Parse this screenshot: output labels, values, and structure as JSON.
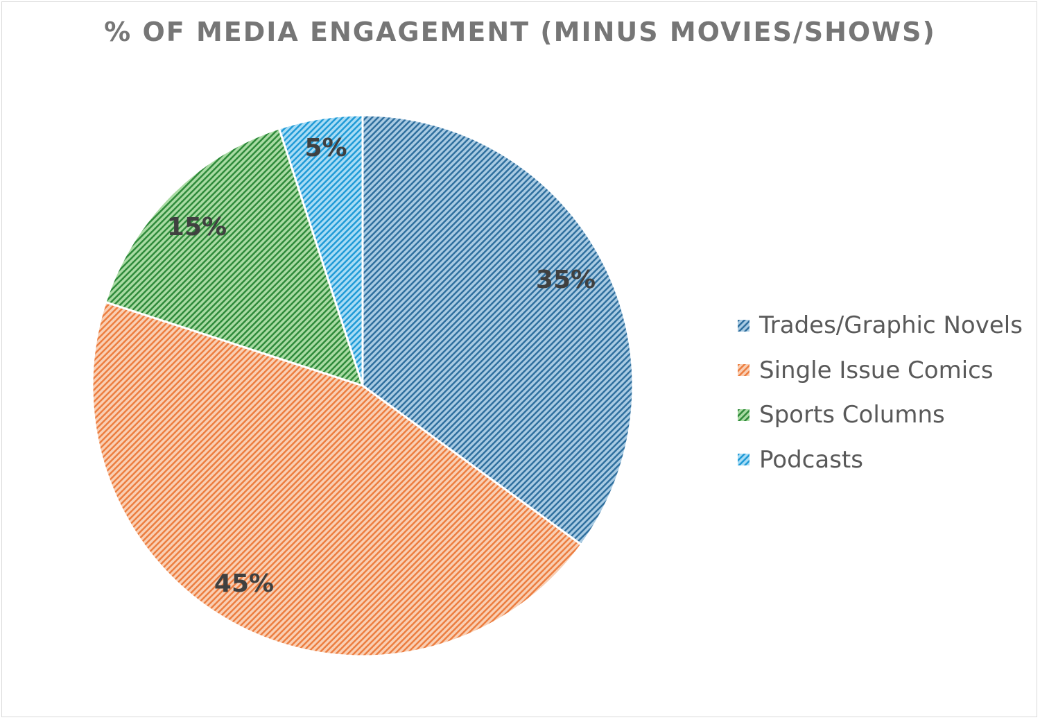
{
  "chart_data": {
    "type": "pie",
    "title": "% OF MEDIA ENGAGEMENT (MINUS MOVIES/SHOWS)",
    "categories": [
      "Trades/Graphic Novels",
      "Single Issue Comics",
      "Sports Columns",
      "Podcasts"
    ],
    "values": [
      35,
      45,
      15,
      5
    ],
    "data_labels": [
      "35%",
      "45%",
      "15%",
      "5%"
    ],
    "legend_position": "right",
    "colors": [
      {
        "fg": "#2f6f9e",
        "bg": "#a9cbe3"
      },
      {
        "fg": "#ec7d3f",
        "bg": "#f9cfb4"
      },
      {
        "fg": "#2e8a3a",
        "bg": "#a9dba3"
      },
      {
        "fg": "#1f9ad6",
        "bg": "#a8dcf5"
      }
    ]
  }
}
